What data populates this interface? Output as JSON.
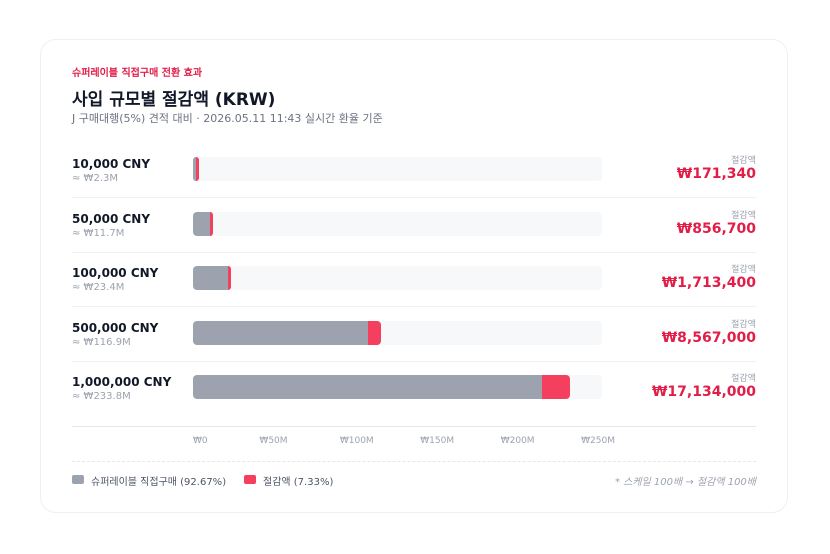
{
  "header": {
    "eyebrow": "슈퍼레이블 직접구매 전환 효과",
    "title": "사입 규모별 절감액 (KRW)",
    "subtitle": "J 구매대행(5%) 견적 대비 · 2026.05.11 11:43 실시간 환율 기준"
  },
  "colors": {
    "accent": "#e11d48",
    "base_bar": "#9ca3af",
    "saving_bar": "#f43f5e"
  },
  "chart_data": {
    "type": "bar",
    "orientation": "horizontal",
    "stacked": true,
    "categories": [
      "10,000 CNY",
      "50,000 CNY",
      "100,000 CNY",
      "500,000 CNY",
      "1,000,000 CNY"
    ],
    "krw_approx": [
      "≈ ₩2.3M",
      "≈ ₩11.7M",
      "≈ ₩23.4M",
      "≈ ₩116.9M",
      "≈ ₩233.8M"
    ],
    "saving_caption": "절감액",
    "saving_labels": [
      "₩171,340",
      "₩856,700",
      "₩1,713,400",
      "₩8,567,000",
      "₩17,134,000"
    ],
    "series": [
      {
        "name": "슈퍼레이블 직접구매 (92.67%)",
        "color": "#9ca3af",
        "values": [
          2171000,
          10856000,
          21712000,
          108560000,
          217120000
        ]
      },
      {
        "name": "절감액 (7.33%)",
        "color": "#f43f5e",
        "values": [
          171340,
          856700,
          1713400,
          8567000,
          17134000
        ]
      }
    ],
    "x_ticks": [
      0,
      50000000,
      100000000,
      150000000,
      200000000,
      250000000
    ],
    "x_tick_labels": [
      "₩0",
      "₩50M",
      "₩100M",
      "₩150M",
      "₩200M",
      "₩250M"
    ],
    "xlim": [
      0,
      254254000
    ],
    "legend_position": "bottom-left",
    "footnote": "* 스케일 100배 → 절감액 100배"
  }
}
